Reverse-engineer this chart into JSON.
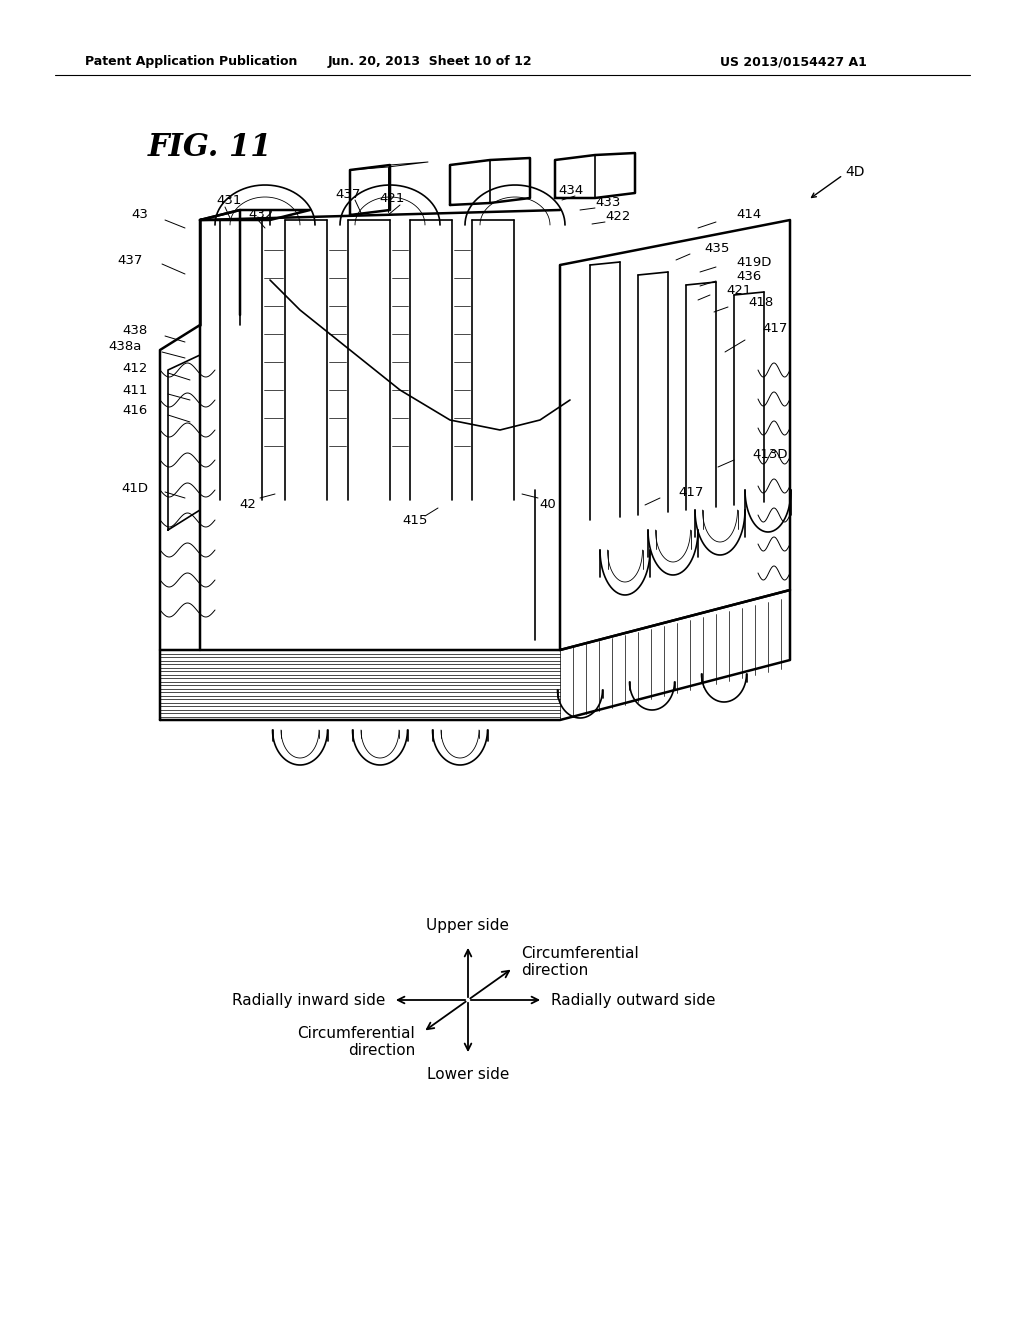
{
  "bg_color": "#ffffff",
  "header_left": "Patent Application Publication",
  "header_mid": "Jun. 20, 2013  Sheet 10 of 12",
  "header_right": "US 2013/0154427 A1",
  "fig_title": "FIG. 11",
  "direction_labels": {
    "upper": "Upper side",
    "lower": "Lower side",
    "rad_inward": "Radially inward side",
    "rad_outward": "Radially outward side",
    "circ1": "Circumferential\ndirection",
    "circ2": "Circumferential\ndirection"
  }
}
